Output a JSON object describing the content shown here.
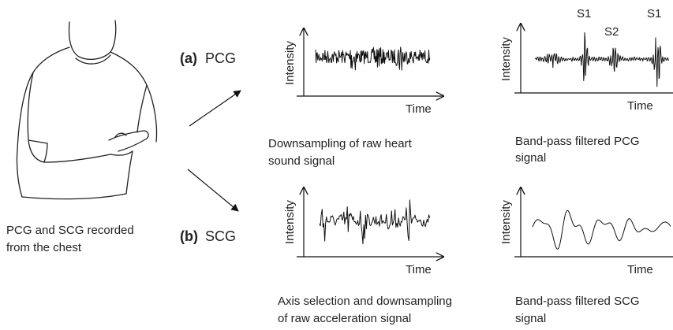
{
  "subject": {
    "caption": [
      "PCG and SCG recorded",
      "from the chest"
    ]
  },
  "branches": [
    {
      "tag": "(a)",
      "name": "PCG",
      "raw": {
        "y_label": "Intensity",
        "x_label": "Time",
        "caption": [
          "Downsampling of raw heart",
          "sound signal"
        ]
      },
      "filtered": {
        "y_label": "Intensity",
        "x_label": "Time",
        "caption": [
          "Band-pass filtered PCG",
          "signal"
        ],
        "peaks": [
          "S1",
          "S2",
          "S1"
        ]
      }
    },
    {
      "tag": "(b)",
      "name": "SCG",
      "raw": {
        "y_label": "Intensity",
        "x_label": "Time",
        "caption": [
          "Axis selection and downsampling",
          "of raw acceleration signal"
        ]
      },
      "filtered": {
        "y_label": "Intensity",
        "x_label": "Time",
        "caption": [
          "Band-pass filtered SCG",
          "signal"
        ]
      }
    }
  ]
}
